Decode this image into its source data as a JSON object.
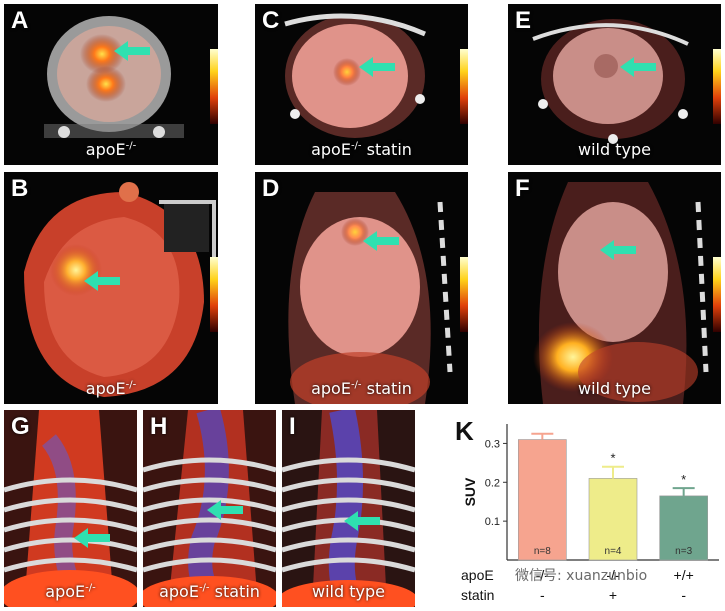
{
  "panels": [
    {
      "letter": "A",
      "caption": "apoE",
      "sup": "-/-",
      "suffix": ""
    },
    {
      "letter": "B",
      "caption": "apoE",
      "sup": "-/-",
      "suffix": ""
    },
    {
      "letter": "C",
      "caption": "apoE",
      "sup": "-/-",
      "suffix": " statin"
    },
    {
      "letter": "D",
      "caption": "apoE",
      "sup": "-/-",
      "suffix": " statin"
    },
    {
      "letter": "E",
      "caption": "wild type",
      "sup": "",
      "suffix": ""
    },
    {
      "letter": "F",
      "caption": "wild type",
      "sup": "",
      "suffix": ""
    },
    {
      "letter": "G",
      "caption": "apoE",
      "sup": "-/-",
      "suffix": ""
    },
    {
      "letter": "H",
      "caption": "apoE",
      "sup": "-/-",
      "suffix": " statin"
    },
    {
      "letter": "I",
      "caption": "wild type",
      "sup": "",
      "suffix": ""
    }
  ],
  "chart_data": {
    "panel_letter": "K",
    "type": "bar",
    "ylabel": "SUV",
    "ylim": [
      0,
      0.35
    ],
    "yticks": [
      0.1,
      0.2,
      0.3
    ],
    "categories": [
      "n=8",
      "n=4",
      "n=3"
    ],
    "values": [
      0.31,
      0.21,
      0.165
    ],
    "errors": [
      0.015,
      0.03,
      0.02
    ],
    "significance": [
      "",
      "*",
      "*"
    ],
    "colors": [
      "#f6a48f",
      "#eeec8a",
      "#6fa58e"
    ],
    "table_rows": [
      {
        "label": "apoE",
        "values": [
          "-/-",
          "-/-",
          "+/+"
        ]
      },
      {
        "label": "statin",
        "values": [
          "-",
          "+",
          "-"
        ]
      }
    ]
  },
  "watermark": "微信号: xuanzunbio"
}
